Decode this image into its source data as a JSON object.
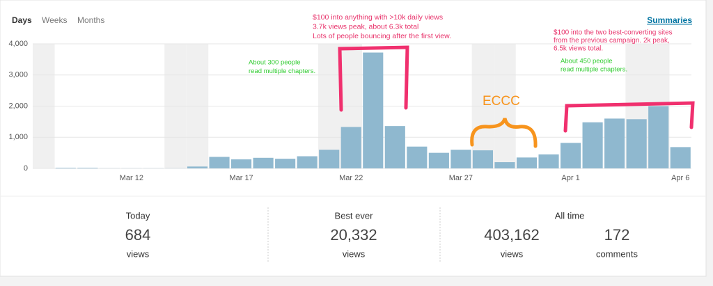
{
  "tabs": [
    "Days",
    "Weeks",
    "Months"
  ],
  "summaries_link": "Summaries",
  "chart_data": {
    "type": "bar",
    "categories": [
      null,
      null,
      null,
      null,
      "Mar 12",
      null,
      null,
      null,
      null,
      "Mar 17",
      null,
      null,
      null,
      null,
      "Mar 22",
      null,
      null,
      null,
      null,
      "Mar 27",
      null,
      null,
      null,
      null,
      "Apr 1",
      null,
      null,
      null,
      null,
      "Apr 6"
    ],
    "values": [
      0,
      20,
      20,
      5,
      5,
      5,
      5,
      60,
      370,
      290,
      340,
      310,
      390,
      600,
      1330,
      3720,
      1360,
      700,
      500,
      600,
      580,
      200,
      350,
      450,
      820,
      1480,
      1600,
      1580,
      2000,
      684
    ],
    "color": "#8fb8cf",
    "ylim": [
      0,
      4000
    ],
    "yticks": [
      0,
      {
        "value": 1000,
        "label": "1,000"
      },
      {
        "value": 2000,
        "label": "2,000"
      },
      {
        "value": 3000,
        "label": "3,000"
      },
      {
        "value": 4000,
        "label": "4,000"
      }
    ],
    "annotations": [
      {
        "lines": [
          "$100 into anything with >10k daily views",
          "3.7k views peak, about 6.3k total",
          "Lots of people bouncing after the first view."
        ],
        "color": "#e8336b"
      },
      {
        "lines": [
          "About 300 people",
          "read multiple chapters."
        ],
        "color": "#33cc33"
      },
      {
        "lines": [
          "ECCC"
        ],
        "color": "#f7941d"
      },
      {
        "lines": [
          "$100 into the two best-converting sites",
          "from the previous campaign. 2k peak,",
          "6.5k views total."
        ],
        "color": "#e8336b"
      },
      {
        "lines": [
          "About 450 people",
          "read multiple chapters."
        ],
        "color": "#33cc33"
      }
    ]
  },
  "stats": [
    {
      "label": "Today",
      "items": [
        {
          "number": "684",
          "unit": "views"
        }
      ]
    },
    {
      "label": "Best ever",
      "items": [
        {
          "number": "20,332",
          "unit": "views"
        }
      ]
    },
    {
      "label": "All time",
      "items": [
        {
          "number": "403,162",
          "unit": "views"
        },
        {
          "number": "172",
          "unit": "comments"
        }
      ]
    }
  ]
}
